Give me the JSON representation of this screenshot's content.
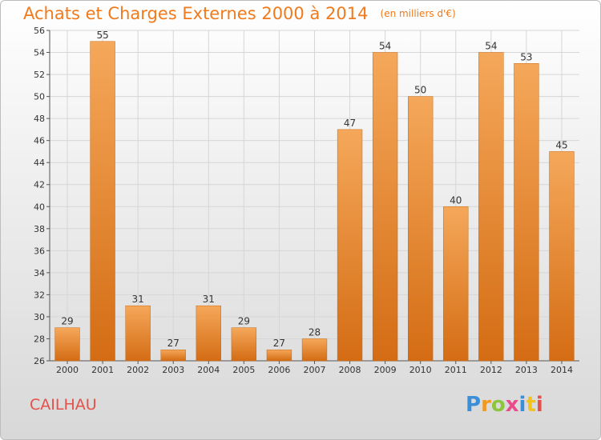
{
  "header": {
    "title": "Achats et Charges Externes 2000 à 2014",
    "subtitle": "(en milliers d'€)"
  },
  "footer": {
    "location": "CAILHAU",
    "logo_text": "Proxiti"
  },
  "colors": {
    "bar_light": "#f5a85a",
    "bar_dark": "#d46c14",
    "title": "#f07a1c",
    "location": "#e5504a"
  },
  "chart_data": {
    "type": "bar",
    "title": "Achats et Charges Externes 2000 à 2014",
    "subtitle": "(en milliers d'€)",
    "categories": [
      "2000",
      "2001",
      "2002",
      "2003",
      "2004",
      "2005",
      "2006",
      "2007",
      "2008",
      "2009",
      "2010",
      "2011",
      "2012",
      "2013",
      "2014"
    ],
    "values": [
      29,
      55,
      31,
      27,
      31,
      29,
      27,
      28,
      47,
      54,
      50,
      40,
      54,
      53,
      45
    ],
    "ylim": [
      26,
      56
    ],
    "yticks": [
      26,
      28,
      30,
      32,
      34,
      36,
      38,
      40,
      42,
      44,
      46,
      48,
      50,
      52,
      54,
      56
    ],
    "grid": true,
    "data_labels": true
  }
}
